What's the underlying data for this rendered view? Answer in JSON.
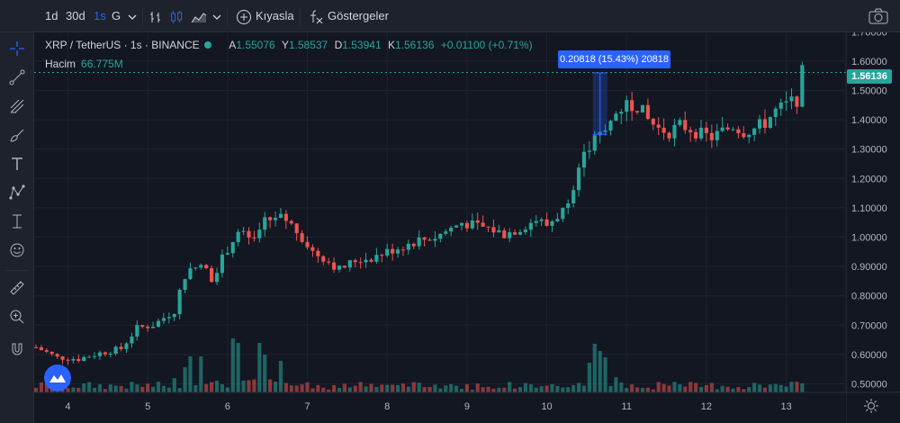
{
  "toolbar": {
    "intervals": [
      "1d",
      "30d",
      "1s",
      "G"
    ],
    "active_interval": "1s",
    "compare_label": "Kıyasla",
    "indicators_label": "Göstergeler",
    "icons": [
      "chevron-down-icon",
      "bars-icon",
      "candles-icon",
      "area-icon",
      "plus-circle-icon",
      "fx-icon",
      "camera-icon"
    ]
  },
  "left_tools": [
    "crosshair-icon",
    "trendline-icon",
    "fib-icon",
    "brush-icon",
    "text-icon",
    "pattern-icon",
    "measure-icon",
    "emoji-icon",
    "ruler-icon",
    "zoom-icon",
    "magnet-icon"
  ],
  "legend": {
    "symbol": "XRP / TetherUS · 1s · BINANCE",
    "open_label": "A",
    "open": "1.55076",
    "high_label": "Y",
    "high": "1.58537",
    "low_label": "D",
    "low": "1.53941",
    "close_label": "K",
    "close": "1.56136",
    "change": "+0.01100 (+0.71%)"
  },
  "volume": {
    "label": "Hacim",
    "value": "66.775M"
  },
  "measure_label": "0.20818 (15.43%) 20818",
  "last_price": "1.56136",
  "colors": {
    "up": "#26a69a",
    "down": "#ef5350",
    "bg": "#131722",
    "grid": "#1f2330",
    "text": "#b2b5be",
    "accent": "#2962ff"
  },
  "chart_data": {
    "type": "candlestick",
    "title": "XRP / TetherUS · 1s · BINANCE",
    "y_ticks": [
      "1.70000",
      "1.60000",
      "1.50000",
      "1.40000",
      "1.30000",
      "1.20000",
      "1.10000",
      "1.00000",
      "0.90000",
      "0.80000",
      "0.70000",
      "0.60000",
      "0.50000"
    ],
    "y_tick_values": [
      1.7,
      1.6,
      1.5,
      1.4,
      1.3,
      1.2,
      1.1,
      1.0,
      0.9,
      0.8,
      0.7,
      0.6,
      0.5
    ],
    "ylim": [
      0.475,
      1.745
    ],
    "x_ticks": [
      "4",
      "5",
      "6",
      "7",
      "8",
      "9",
      "10",
      "11",
      "12",
      "13"
    ],
    "x_tick_positions": [
      6,
      21,
      36,
      51,
      66,
      81,
      96,
      111,
      126,
      141
    ],
    "x_range": [
      0,
      148
    ],
    "grid": true,
    "close_path": [
      [
        0,
        0.625
      ],
      [
        4,
        0.59
      ],
      [
        8,
        0.585
      ],
      [
        12,
        0.605
      ],
      [
        16,
        0.62
      ],
      [
        19,
        0.69
      ],
      [
        22,
        0.7
      ],
      [
        26,
        0.75
      ],
      [
        28,
        0.87
      ],
      [
        31,
        0.91
      ],
      [
        33,
        0.86
      ],
      [
        36,
        0.96
      ],
      [
        38,
        1.02
      ],
      [
        41,
        0.98
      ],
      [
        43,
        1.05
      ],
      [
        45,
        1.07
      ],
      [
        47,
        1.06
      ],
      [
        50,
        1.0
      ],
      [
        52,
        0.95
      ],
      [
        54,
        0.93
      ],
      [
        57,
        0.89
      ],
      [
        60,
        0.92
      ],
      [
        63,
        0.93
      ],
      [
        66,
        0.95
      ],
      [
        69,
        0.97
      ],
      [
        72,
        0.99
      ],
      [
        75,
        1.0
      ],
      [
        78,
        1.03
      ],
      [
        80,
        1.05
      ],
      [
        82,
        1.04
      ],
      [
        85,
        1.03
      ],
      [
        88,
        1.01
      ],
      [
        91,
        1.03
      ],
      [
        94,
        1.06
      ],
      [
        96,
        1.04
      ],
      [
        99,
        1.09
      ],
      [
        101,
        1.18
      ],
      [
        103,
        1.27
      ],
      [
        105,
        1.33
      ],
      [
        107,
        1.36
      ],
      [
        109,
        1.42
      ],
      [
        111,
        1.46
      ],
      [
        113,
        1.45
      ],
      [
        115,
        1.4
      ],
      [
        117,
        1.37
      ],
      [
        119,
        1.36
      ],
      [
        121,
        1.38
      ],
      [
        123,
        1.37
      ],
      [
        125,
        1.35
      ],
      [
        127,
        1.34
      ],
      [
        129,
        1.36
      ],
      [
        131,
        1.38
      ],
      [
        133,
        1.36
      ],
      [
        135,
        1.37
      ],
      [
        137,
        1.39
      ],
      [
        139,
        1.43
      ],
      [
        141,
        1.45
      ],
      [
        143,
        1.47
      ],
      [
        144,
        1.56
      ]
    ],
    "volume_scale_max": 100,
    "volume_spikes": [
      {
        "x": 28,
        "v": 28
      },
      {
        "x": 29,
        "v": 40
      },
      {
        "x": 31,
        "v": 40
      },
      {
        "x": 37,
        "v": 60
      },
      {
        "x": 38,
        "v": 55
      },
      {
        "x": 42,
        "v": 55
      },
      {
        "x": 43,
        "v": 42
      },
      {
        "x": 46,
        "v": 35
      },
      {
        "x": 104,
        "v": 33
      },
      {
        "x": 105,
        "v": 54
      },
      {
        "x": 106,
        "v": 46
      },
      {
        "x": 107,
        "v": 39
      }
    ]
  }
}
